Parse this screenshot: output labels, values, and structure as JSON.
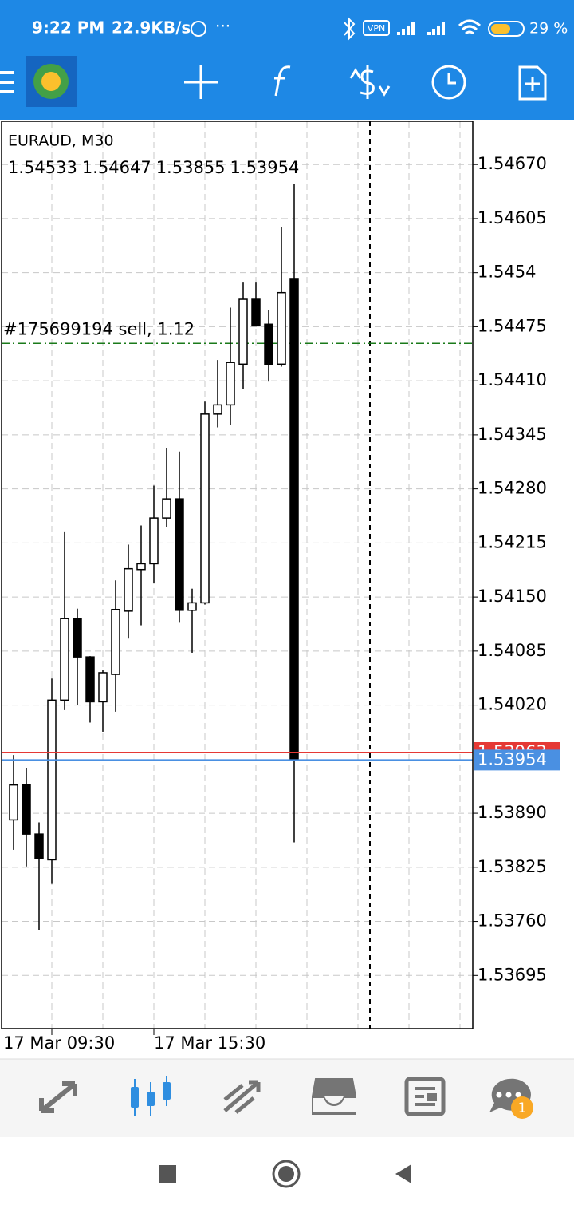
{
  "status_bar": {
    "time": "9:22 PM",
    "speed": "22.9KB/s",
    "vpn": "VPN",
    "battery": "29 %"
  },
  "chart_data": {
    "type": "candlestick",
    "symbol": "EURAUD, M30",
    "categories": [
      null,
      null,
      null,
      "17 Mar 09:30",
      null,
      null,
      null,
      null,
      null,
      null,
      null,
      "17 Mar 15:30",
      null,
      null,
      null,
      null,
      null,
      null,
      null,
      null,
      null,
      null,
      null
    ],
    "open": [
      1.53882,
      1.53924,
      1.53865,
      1.53834,
      1.54026,
      1.54124,
      1.54078,
      1.54024,
      1.54057,
      1.54133,
      1.54183,
      1.5419,
      1.54245,
      1.54268,
      1.54134,
      1.54143,
      1.5437,
      1.54381,
      1.5443,
      1.54508,
      1.54478,
      1.5443,
      1.54533
    ],
    "high": [
      1.5396,
      1.53944,
      1.53879,
      1.54052,
      1.54228,
      1.54136,
      1.54079,
      1.54062,
      1.5417,
      1.54213,
      1.54236,
      1.54284,
      1.54329,
      1.54325,
      1.5416,
      1.54385,
      1.54435,
      1.54498,
      1.54529,
      1.54529,
      1.54495,
      1.54595,
      1.54647
    ],
    "low": [
      1.53846,
      1.53826,
      1.5375,
      1.53805,
      1.54014,
      1.5402,
      1.53999,
      1.53988,
      1.54012,
      1.541,
      1.54116,
      1.54167,
      1.54234,
      1.54119,
      1.54083,
      1.54141,
      1.54354,
      1.54357,
      1.544,
      1.54476,
      1.54409,
      1.54427,
      1.53855
    ],
    "close": [
      1.53924,
      1.53865,
      1.53836,
      1.54026,
      1.54124,
      1.54078,
      1.54024,
      1.54059,
      1.54135,
      1.54184,
      1.5419,
      1.54245,
      1.54268,
      1.54134,
      1.54143,
      1.5437,
      1.54381,
      1.54432,
      1.54508,
      1.54476,
      1.5443,
      1.54516,
      1.53954
    ],
    "up_color": "#ffffff",
    "down_color": "#000000",
    "ylim": [
      1.53631,
      1.54722
    ],
    "yticks": [
      {
        "value": 1.5467,
        "label": "1.54670"
      },
      1.54605,
      1.5454,
      {
        "value": 1.54475,
        "label": "1.54475"
      },
      {
        "value": 1.5441,
        "label": "1.54410"
      },
      1.54345,
      {
        "value": 1.5428,
        "label": "1.54280"
      },
      1.54215,
      {
        "value": 1.5415,
        "label": "1.54150"
      },
      1.54085,
      {
        "value": 1.5402,
        "label": "1.54020"
      },
      {
        "value": 1.5389,
        "label": "1.53890"
      },
      1.53825,
      {
        "value": 1.5376,
        "label": "1.53760"
      },
      1.53695
    ],
    "grid": true,
    "order_line": {
      "label": "#175699194 sell, 1.12",
      "value": 1.54455,
      "color": "#1a7a1a"
    },
    "ask_line": {
      "value": 1.53963,
      "color": "#e53935"
    },
    "bid_line": {
      "value": 1.53954,
      "color": "#4a90e2"
    }
  },
  "bottom_nav": {
    "badge": 1
  }
}
